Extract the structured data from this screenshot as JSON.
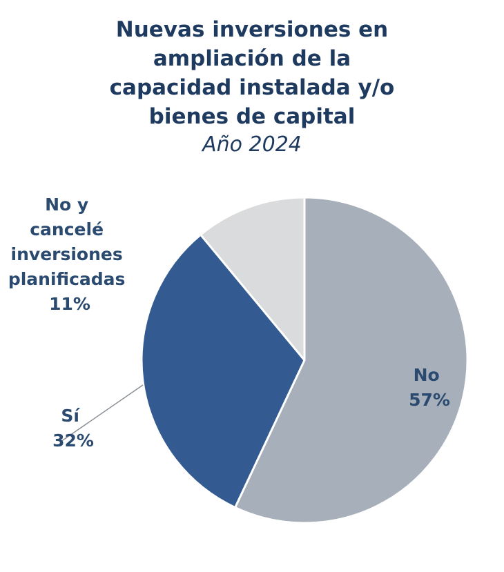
{
  "chart_data": {
    "type": "pie",
    "title": "Nuevas inversiones en ampliación de la capacidad instalada y/o bienes de capital",
    "subtitle": "Año 2024",
    "slices": [
      {
        "label": "No",
        "value": 57,
        "value_text": "57%",
        "color": "#a7afba"
      },
      {
        "label": "Sí",
        "value": 32,
        "value_text": "32%",
        "color": "#335b92"
      },
      {
        "label": "No y cancelé inversiones planificadas",
        "value": 11,
        "value_text": "11%",
        "color": "#dadbdd"
      }
    ],
    "start": "12 o'clock",
    "direction": "clockwise"
  },
  "labels": {
    "no": [
      "No",
      "57%"
    ],
    "si": [
      "Sí",
      "32%"
    ],
    "cancel": [
      "No y",
      "cancelé",
      "inversiones",
      "planificadas",
      "11%"
    ]
  }
}
